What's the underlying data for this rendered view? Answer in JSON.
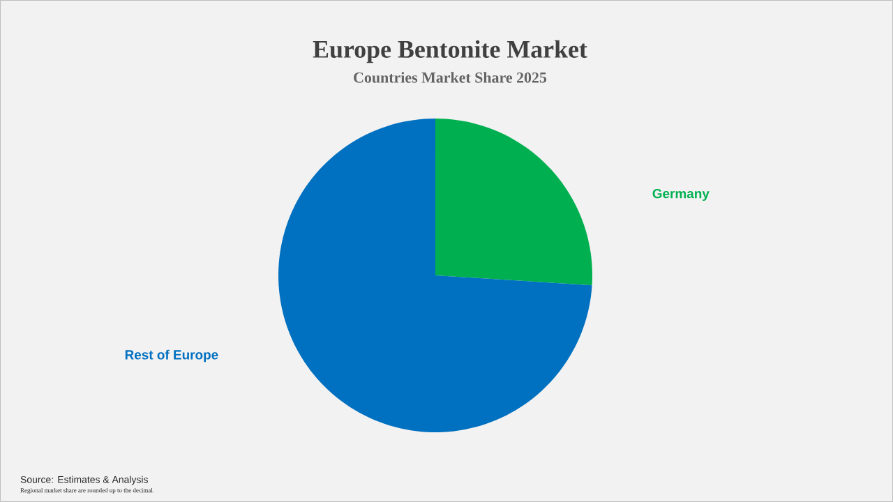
{
  "chart_data": {
    "type": "pie",
    "title": "Europe Bentonite Market",
    "subtitle": "Countries Market Share 2025",
    "categories": [
      "Germany",
      "Rest of Europe"
    ],
    "values": [
      26,
      74
    ],
    "colors": [
      "#00b050",
      "#0070c0"
    ],
    "annotations": [
      "Source: Estimates & Analysis",
      "Regional market share are rounded up to the decimal."
    ]
  }
}
